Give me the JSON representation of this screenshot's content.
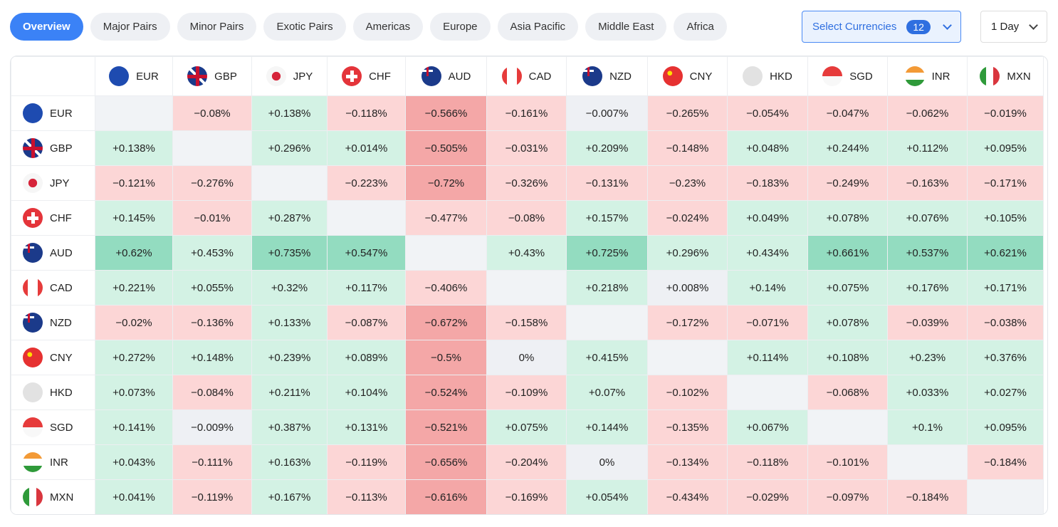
{
  "header": {
    "tabs": [
      "Overview",
      "Major Pairs",
      "Minor Pairs",
      "Exotic Pairs",
      "Americas",
      "Europe",
      "Asia Pacific",
      "Middle East",
      "Africa"
    ],
    "currency_select": {
      "label": "Select Currencies",
      "count": "12"
    },
    "period": "1 Day"
  },
  "table": {
    "columns": [
      "EUR",
      "GBP",
      "JPY",
      "CHF",
      "AUD",
      "CAD",
      "NZD",
      "CNY",
      "HKD",
      "SGD",
      "INR",
      "MXN"
    ],
    "rows": [
      {
        "label": "EUR",
        "cells": [
          null,
          "−0.08%",
          "+0.138%",
          "−0.118%",
          "−0.566%",
          "−0.161%",
          "−0.007%",
          "−0.265%",
          "−0.054%",
          "−0.047%",
          "−0.062%",
          "−0.019%"
        ]
      },
      {
        "label": "GBP",
        "cells": [
          "+0.138%",
          null,
          "+0.296%",
          "+0.014%",
          "−0.505%",
          "−0.031%",
          "+0.209%",
          "−0.148%",
          "+0.048%",
          "+0.244%",
          "+0.112%",
          "+0.095%"
        ]
      },
      {
        "label": "JPY",
        "cells": [
          "−0.121%",
          "−0.276%",
          null,
          "−0.223%",
          "−0.72%",
          "−0.326%",
          "−0.131%",
          "−0.23%",
          "−0.183%",
          "−0.249%",
          "−0.163%",
          "−0.171%"
        ]
      },
      {
        "label": "CHF",
        "cells": [
          "+0.145%",
          "−0.01%",
          "+0.287%",
          null,
          "−0.477%",
          "−0.08%",
          "+0.157%",
          "−0.024%",
          "+0.049%",
          "+0.078%",
          "+0.076%",
          "+0.105%"
        ]
      },
      {
        "label": "AUD",
        "cells": [
          "+0.62%",
          "+0.453%",
          "+0.735%",
          "+0.547%",
          null,
          "+0.43%",
          "+0.725%",
          "+0.296%",
          "+0.434%",
          "+0.661%",
          "+0.537%",
          "+0.621%"
        ]
      },
      {
        "label": "CAD",
        "cells": [
          "+0.221%",
          "+0.055%",
          "+0.32%",
          "+0.117%",
          "−0.406%",
          null,
          "+0.218%",
          "+0.008%",
          "+0.14%",
          "+0.075%",
          "+0.176%",
          "+0.171%"
        ]
      },
      {
        "label": "NZD",
        "cells": [
          "−0.02%",
          "−0.136%",
          "+0.133%",
          "−0.087%",
          "−0.672%",
          "−0.158%",
          null,
          "−0.172%",
          "−0.071%",
          "+0.078%",
          "−0.039%",
          "−0.038%"
        ]
      },
      {
        "label": "CNY",
        "cells": [
          "+0.272%",
          "+0.148%",
          "+0.239%",
          "+0.089%",
          "−0.5%",
          "0%",
          "+0.415%",
          null,
          "+0.114%",
          "+0.108%",
          "+0.23%",
          "+0.376%"
        ]
      },
      {
        "label": "HKD",
        "cells": [
          "+0.073%",
          "−0.084%",
          "+0.211%",
          "+0.104%",
          "−0.524%",
          "−0.109%",
          "+0.07%",
          "−0.102%",
          null,
          "−0.068%",
          "+0.033%",
          "+0.027%"
        ]
      },
      {
        "label": "SGD",
        "cells": [
          "+0.141%",
          "−0.009%",
          "+0.387%",
          "+0.131%",
          "−0.521%",
          "+0.075%",
          "+0.144%",
          "−0.135%",
          "+0.067%",
          null,
          "+0.1%",
          "+0.095%"
        ]
      },
      {
        "label": "INR",
        "cells": [
          "+0.043%",
          "−0.111%",
          "+0.163%",
          "−0.119%",
          "−0.656%",
          "−0.204%",
          "0%",
          "−0.134%",
          "−0.118%",
          "−0.101%",
          null,
          "−0.184%"
        ]
      },
      {
        "label": "MXN",
        "cells": [
          "+0.041%",
          "−0.119%",
          "+0.167%",
          "−0.113%",
          "−0.616%",
          "−0.169%",
          "+0.054%",
          "−0.434%",
          "−0.029%",
          "−0.097%",
          "−0.184%",
          null
        ]
      }
    ]
  }
}
